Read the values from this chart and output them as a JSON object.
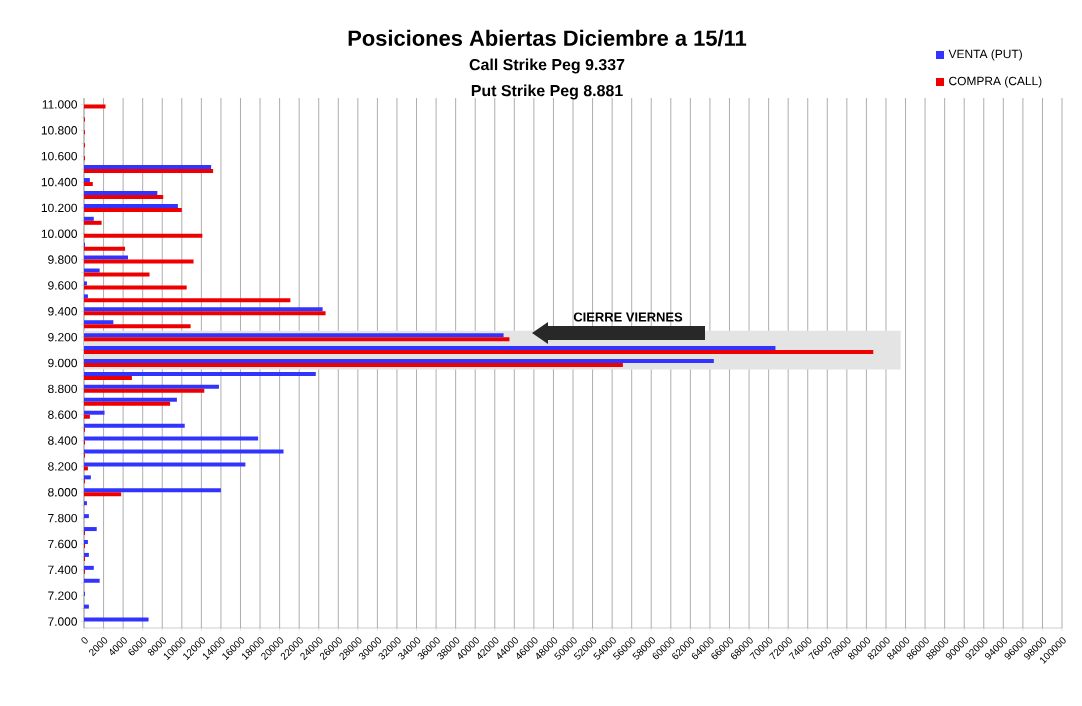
{
  "chart_data": {
    "type": "bar",
    "orientation": "horizontal",
    "title": "Posiciones Abiertas Diciembre a 15/11",
    "annotations": [
      "Call Strike Peg   9.337",
      "Put Strike Peg    8.881",
      "CIERRE VIERNES"
    ],
    "categories": [
      "11.000",
      null,
      "10.800",
      null,
      "10.600",
      null,
      "10.400",
      null,
      "10.200",
      null,
      "10.000",
      null,
      "9.800",
      null,
      "9.600",
      null,
      "9.400",
      null,
      "9.200",
      null,
      "9.000",
      null,
      "8.800",
      null,
      "8.600",
      null,
      "8.400",
      null,
      "8.200",
      null,
      "8.000",
      null,
      "7.800",
      null,
      "7.600",
      null,
      "7.400",
      null,
      "7.200",
      null,
      "7.000"
    ],
    "series": [
      {
        "name": "VENTA (PUT)",
        "color": "#3333ff",
        "values": [
          0,
          0,
          0,
          0,
          0,
          13000,
          600,
          7500,
          9600,
          1000,
          0,
          100,
          4500,
          1600,
          300,
          400,
          24400,
          3000,
          42900,
          70700,
          64400,
          23700,
          13800,
          9500,
          2100,
          10300,
          17800,
          20400,
          16500,
          700,
          14000,
          300,
          500,
          1300,
          400,
          500,
          1000,
          1600,
          100,
          500,
          6600
        ]
      },
      {
        "name": "COMPRA (CALL)",
        "color": "#ee0000",
        "values": [
          2200,
          100,
          100,
          100,
          100,
          13200,
          900,
          8100,
          10000,
          1800,
          12100,
          4200,
          11200,
          6700,
          10500,
          21100,
          24700,
          10900,
          43500,
          80700,
          55100,
          4900,
          12300,
          8800,
          600,
          100,
          100,
          100,
          400,
          100,
          3800,
          0,
          0,
          100,
          100,
          100,
          100,
          0,
          0,
          0,
          0
        ]
      }
    ],
    "xlim": [
      0,
      100000
    ],
    "xticks": [
      0,
      2000,
      4000,
      6000,
      8000,
      10000,
      12000,
      14000,
      16000,
      18000,
      20000,
      22000,
      24000,
      26000,
      28000,
      30000,
      32000,
      34000,
      36000,
      38000,
      40000,
      42000,
      44000,
      46000,
      48000,
      50000,
      52000,
      54000,
      56000,
      58000,
      60000,
      62000,
      64000,
      66000,
      68000,
      70000,
      72000,
      74000,
      76000,
      78000,
      80000,
      82000,
      84000,
      86000,
      88000,
      90000,
      92000,
      94000,
      96000,
      98000,
      100000
    ],
    "bands": [
      {
        "axis": "y",
        "from": "9.200",
        "to": "9.000",
        "label": null,
        "color": "#e4e4e4"
      }
    ],
    "grid": "x",
    "legend": "top right"
  }
}
